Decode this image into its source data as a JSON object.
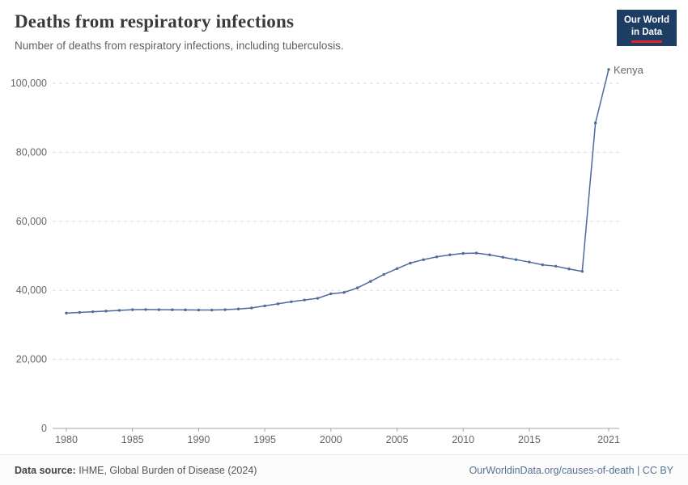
{
  "header": {
    "title": "Deaths from respiratory infections",
    "subtitle": "Number of deaths from respiratory infections, including tuberculosis.",
    "logo": {
      "line1": "Our World",
      "line2": "in Data"
    }
  },
  "colors": {
    "line": "#4c6a9c",
    "logo_bg": "#1d3d63",
    "logo_accent": "#e0232b",
    "grid": "#dddddd",
    "axis": "#a5a5a5",
    "tick_text": "#666666"
  },
  "chart_data": {
    "type": "line",
    "title": "Deaths from respiratory infections",
    "subtitle": "Number of deaths from respiratory infections, including tuberculosis.",
    "xlabel": "",
    "ylabel": "",
    "grid": "horizontal-dashed",
    "legend": "end-of-line-label",
    "xlim": [
      1980,
      2021
    ],
    "ylim": [
      0,
      105000
    ],
    "x_ticks": [
      1980,
      1985,
      1990,
      1995,
      2000,
      2005,
      2010,
      2015,
      2021
    ],
    "y_ticks": [
      0,
      20000,
      40000,
      60000,
      80000,
      100000
    ],
    "x": [
      1980,
      1981,
      1982,
      1983,
      1984,
      1985,
      1986,
      1987,
      1988,
      1989,
      1990,
      1991,
      1992,
      1993,
      1994,
      1995,
      1996,
      1997,
      1998,
      1999,
      2000,
      2001,
      2002,
      2003,
      2004,
      2005,
      2006,
      2007,
      2008,
      2009,
      2010,
      2011,
      2012,
      2013,
      2014,
      2015,
      2016,
      2017,
      2018,
      2019,
      2020,
      2021
    ],
    "series": [
      {
        "name": "Kenya",
        "color": "#4c6a9c",
        "values": [
          33400,
          33600,
          33800,
          34000,
          34200,
          34400,
          34450,
          34400,
          34380,
          34350,
          34300,
          34300,
          34400,
          34600,
          34900,
          35500,
          36100,
          36700,
          37200,
          37700,
          39000,
          39400,
          40700,
          42600,
          44600,
          46300,
          47900,
          48900,
          49700,
          50300,
          50700,
          50800,
          50300,
          49600,
          48900,
          48200,
          47400,
          47000,
          46200,
          45500,
          88500,
          104000
        ]
      }
    ]
  },
  "footer": {
    "source_label": "Data source:",
    "source": " IHME, Global Burden of Disease (2024)",
    "link": "OurWorldinData.org/causes-of-death | CC BY"
  }
}
